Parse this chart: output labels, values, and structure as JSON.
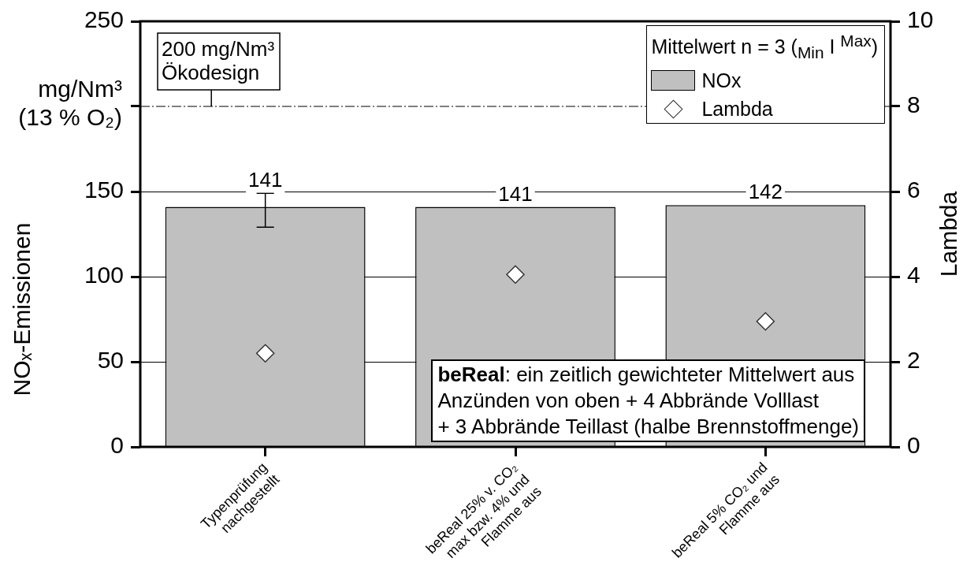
{
  "chart_data": {
    "type": "bar",
    "categories": [
      "Typenprüfung\nnachgestellt",
      "beReal 25% v. CO₂\nmax bzw. 4% und\nFlamme aus",
      "beReal 5% CO₂ und\nFlamme aus"
    ],
    "series": [
      {
        "name": "NOx",
        "color": "#c0c0c0",
        "values": [
          141,
          141,
          142
        ],
        "errors": [
          [
            129,
            149
          ],
          null,
          null
        ],
        "value_labels": [
          "141",
          "141",
          "142"
        ]
      },
      {
        "name": "Lambda",
        "type": "scatter",
        "axis": "y2",
        "marker": "diamond",
        "color": "#ffffff",
        "x": [
          "Typenprüfung\nnachgestellt",
          "beReal 25% v. CO₂\nmax bzw. 4% und\nFlamme aus",
          "beReal 5% CO₂ und\nFlamme aus"
        ],
        "values": [
          2.2,
          4.05,
          2.95
        ]
      }
    ],
    "ylabel": "NOₓ-Emissionen",
    "y2label": "Lambda",
    "ylim": [
      0,
      250
    ],
    "yticks": [
      0,
      50,
      100,
      150,
      {
        "value": 200,
        "label": null
      },
      250
    ],
    "y2lim": [
      0,
      10
    ],
    "y2ticks": [
      0,
      2,
      4,
      6,
      8,
      10
    ],
    "ref_lines": [
      {
        "axis": "y",
        "value": 200,
        "label": "200 mg/Nm³\nÖkodesign",
        "line_style": "dashed",
        "color": "#000000"
      }
    ],
    "legend": "top right",
    "legend_title": "Mittelwert n = 3 ($_{Min}$ I $^{Max}$)",
    "annotations": [
      "mg/Nm³\n(13 % O₂)",
      "beReal: ein zeitlich gewichteter Mittelwert aus\nAnzünden von oben + 4 Abbrände Volllast\n+ 3 Abbrände Teillast (halbe Brennstoffmenge)"
    ],
    "grid": "y"
  }
}
